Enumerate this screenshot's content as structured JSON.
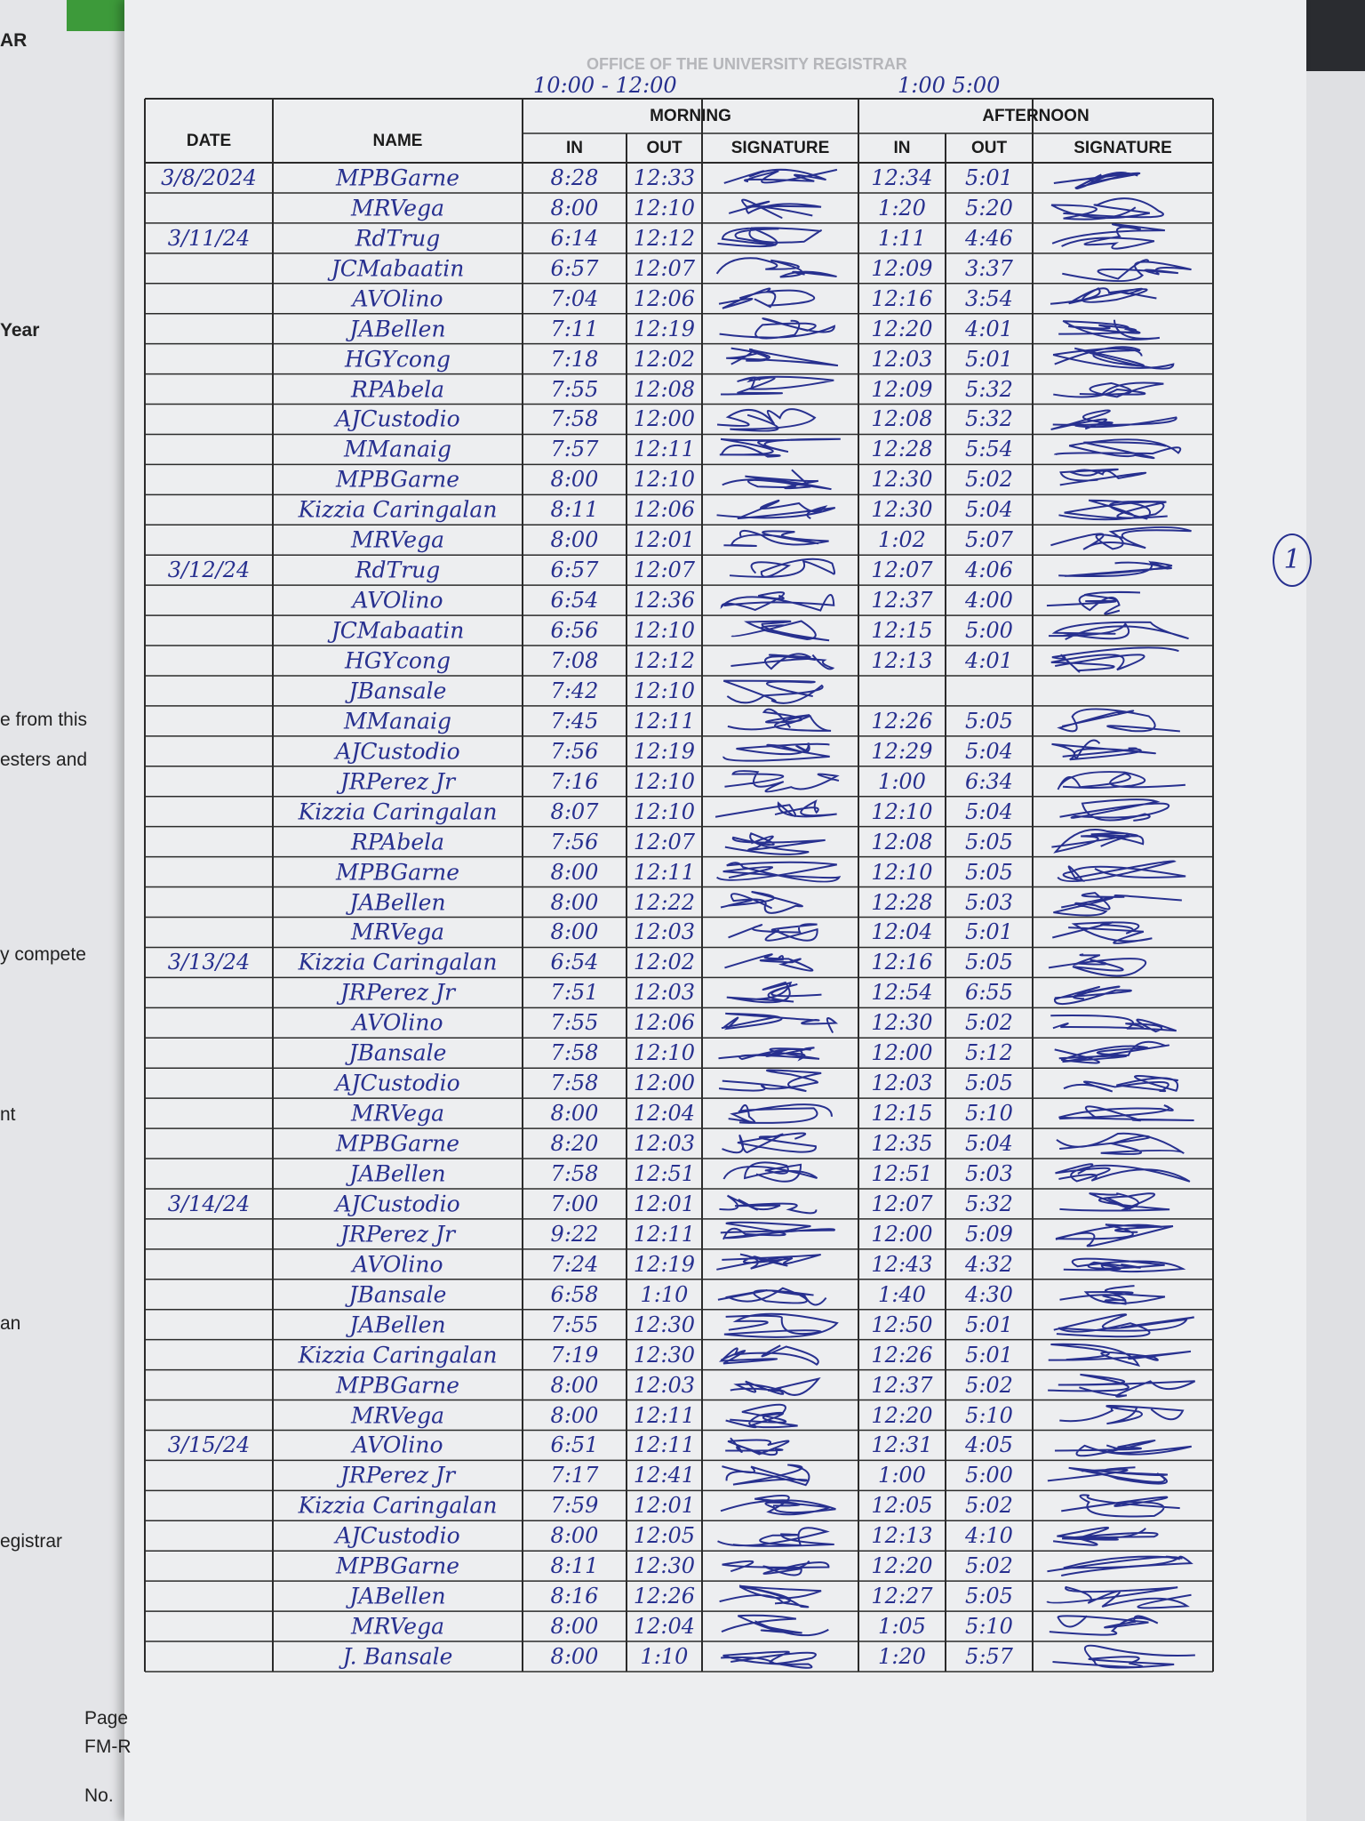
{
  "header": {
    "office": "OFFICE OF THE UNIVERSITY REGISTRAR",
    "morning_hours": "10:00 - 12:00",
    "afternoon_hours": "1:00 5:00"
  },
  "table": {
    "groups": [
      "MORNING",
      "AFTERNOON"
    ],
    "columns": [
      "DATE",
      "NAME",
      "IN",
      "OUT",
      "SIGNATURE",
      "IN",
      "OUT",
      "SIGNATURE"
    ],
    "rows": [
      {
        "date": "3/8/2024",
        "name": "MPBGarne",
        "am_in": "8:28",
        "am_out": "12:33",
        "pm_in": "12:34",
        "pm_out": "5:01"
      },
      {
        "name": "MRVega",
        "am_in": "8:00",
        "am_out": "12:10",
        "pm_in": "1:20",
        "pm_out": "5:20"
      },
      {
        "date": "3/11/24",
        "name": "RdTrug",
        "am_in": "6:14",
        "am_out": "12:12",
        "pm_in": "1:11",
        "pm_out": "4:46"
      },
      {
        "name": "JCMabaatin",
        "am_in": "6:57",
        "am_out": "12:07",
        "pm_in": "12:09",
        "pm_out": "3:37"
      },
      {
        "name": "AVOlino",
        "am_in": "7:04",
        "am_out": "12:06",
        "pm_in": "12:16",
        "pm_out": "3:54"
      },
      {
        "name": "JABellen",
        "am_in": "7:11",
        "am_out": "12:19",
        "pm_in": "12:20",
        "pm_out": "4:01"
      },
      {
        "name": "HGYcong",
        "am_in": "7:18",
        "am_out": "12:02",
        "pm_in": "12:03",
        "pm_out": "5:01"
      },
      {
        "name": "RPAbela",
        "am_in": "7:55",
        "am_out": "12:08",
        "pm_in": "12:09",
        "pm_out": "5:32"
      },
      {
        "name": "AJCustodio",
        "am_in": "7:58",
        "am_out": "12:00",
        "pm_in": "12:08",
        "pm_out": "5:32"
      },
      {
        "name": "MManaig",
        "am_in": "7:57",
        "am_out": "12:11",
        "pm_in": "12:28",
        "pm_out": "5:54"
      },
      {
        "name": "MPBGarne",
        "am_in": "8:00",
        "am_out": "12:10",
        "pm_in": "12:30",
        "pm_out": "5:02"
      },
      {
        "name": "Kizzia Caringalan",
        "am_in": "8:11",
        "am_out": "12:06",
        "pm_in": "12:30",
        "pm_out": "5:04"
      },
      {
        "name": "MRVega",
        "am_in": "8:00",
        "am_out": "12:01",
        "pm_in": "1:02",
        "pm_out": "5:07"
      },
      {
        "date": "3/12/24",
        "name": "RdTrug",
        "am_in": "6:57",
        "am_out": "12:07",
        "pm_in": "12:07",
        "pm_out": "4:06"
      },
      {
        "name": "AVOlino",
        "am_in": "6:54",
        "am_out": "12:36",
        "pm_in": "12:37",
        "pm_out": "4:00"
      },
      {
        "name": "JCMabaatin",
        "am_in": "6:56",
        "am_out": "12:10",
        "pm_in": "12:15",
        "pm_out": "5:00"
      },
      {
        "name": "HGYcong",
        "am_in": "7:08",
        "am_out": "12:12",
        "pm_in": "12:13",
        "pm_out": "4:01"
      },
      {
        "name": "JBansale",
        "am_in": "7:42",
        "am_out": "12:10"
      },
      {
        "name": "MManaig",
        "am_in": "7:45",
        "am_out": "12:11",
        "pm_in": "12:26",
        "pm_out": "5:05"
      },
      {
        "name": "AJCustodio",
        "am_in": "7:56",
        "am_out": "12:19",
        "pm_in": "12:29",
        "pm_out": "5:04"
      },
      {
        "name": "JRPerez Jr",
        "am_in": "7:16",
        "am_out": "12:10",
        "pm_in": "1:00",
        "pm_out": "6:34"
      },
      {
        "name": "Kizzia Caringalan",
        "am_in": "8:07",
        "am_out": "12:10",
        "pm_in": "12:10",
        "pm_out": "5:04"
      },
      {
        "name": "RPAbela",
        "am_in": "7:56",
        "am_out": "12:07",
        "pm_in": "12:08",
        "pm_out": "5:05"
      },
      {
        "name": "MPBGarne",
        "am_in": "8:00",
        "am_out": "12:11",
        "pm_in": "12:10",
        "pm_out": "5:05"
      },
      {
        "name": "JABellen",
        "am_in": "8:00",
        "am_out": "12:22",
        "pm_in": "12:28",
        "pm_out": "5:03"
      },
      {
        "name": "MRVega",
        "am_in": "8:00",
        "am_out": "12:03",
        "pm_in": "12:04",
        "pm_out": "5:01"
      },
      {
        "date": "3/13/24",
        "name": "Kizzia Caringalan",
        "am_in": "6:54",
        "am_out": "12:02",
        "pm_in": "12:16",
        "pm_out": "5:05"
      },
      {
        "name": "JRPerez Jr",
        "am_in": "7:51",
        "am_out": "12:03",
        "pm_in": "12:54",
        "pm_out": "6:55"
      },
      {
        "name": "AVOlino",
        "am_in": "7:55",
        "am_out": "12:06",
        "pm_in": "12:30",
        "pm_out": "5:02"
      },
      {
        "name": "JBansale",
        "am_in": "7:58",
        "am_out": "12:10",
        "pm_in": "12:00",
        "pm_out": "5:12"
      },
      {
        "name": "AJCustodio",
        "am_in": "7:58",
        "am_out": "12:00",
        "pm_in": "12:03",
        "pm_out": "5:05"
      },
      {
        "name": "MRVega",
        "am_in": "8:00",
        "am_out": "12:04",
        "pm_in": "12:15",
        "pm_out": "5:10"
      },
      {
        "name": "MPBGarne",
        "am_in": "8:20",
        "am_out": "12:03",
        "pm_in": "12:35",
        "pm_out": "5:04"
      },
      {
        "name": "JABellen",
        "am_in": "7:58",
        "am_out": "12:51",
        "pm_in": "12:51",
        "pm_out": "5:03"
      },
      {
        "date": "3/14/24",
        "name": "AJCustodio",
        "am_in": "7:00",
        "am_out": "12:01",
        "pm_in": "12:07",
        "pm_out": "5:32"
      },
      {
        "name": "JRPerez Jr",
        "am_in": "9:22",
        "am_out": "12:11",
        "pm_in": "12:00",
        "pm_out": "5:09"
      },
      {
        "name": "AVOlino",
        "am_in": "7:24",
        "am_out": "12:19",
        "pm_in": "12:43",
        "pm_out": "4:32"
      },
      {
        "name": "JBansale",
        "am_in": "6:58",
        "am_out": "1:10",
        "pm_in": "1:40",
        "pm_out": "4:30"
      },
      {
        "name": "JABellen",
        "am_in": "7:55",
        "am_out": "12:30",
        "pm_in": "12:50",
        "pm_out": "5:01"
      },
      {
        "name": "Kizzia Caringalan",
        "am_in": "7:19",
        "am_out": "12:30",
        "pm_in": "12:26",
        "pm_out": "5:01"
      },
      {
        "name": "MPBGarne",
        "am_in": "8:00",
        "am_out": "12:03",
        "pm_in": "12:37",
        "pm_out": "5:02"
      },
      {
        "name": "MRVega",
        "am_in": "8:00",
        "am_out": "12:11",
        "pm_in": "12:20",
        "pm_out": "5:10"
      },
      {
        "date": "3/15/24",
        "name": "AVOlino",
        "am_in": "6:51",
        "am_out": "12:11",
        "pm_in": "12:31",
        "pm_out": "4:05"
      },
      {
        "name": "JRPerez Jr",
        "am_in": "7:17",
        "am_out": "12:41",
        "pm_in": "1:00",
        "pm_out": "5:00"
      },
      {
        "name": "Kizzia Caringalan",
        "am_in": "7:59",
        "am_out": "12:01",
        "pm_in": "12:05",
        "pm_out": "5:02"
      },
      {
        "name": "AJCustodio",
        "am_in": "8:00",
        "am_out": "12:05",
        "pm_in": "12:13",
        "pm_out": "4:10"
      },
      {
        "name": "MPBGarne",
        "am_in": "8:11",
        "am_out": "12:30",
        "pm_in": "12:20",
        "pm_out": "5:02"
      },
      {
        "name": "JABellen",
        "am_in": "8:16",
        "am_out": "12:26",
        "pm_in": "12:27",
        "pm_out": "5:05"
      },
      {
        "name": "MRVega",
        "am_in": "8:00",
        "am_out": "12:04",
        "pm_in": "1:05",
        "pm_out": "5:10"
      },
      {
        "name": "J. Bansale",
        "am_in": "8:00",
        "am_out": "1:10",
        "pm_in": "1:20",
        "pm_out": "5:57"
      }
    ]
  },
  "margin_note": "1",
  "left_page": [
    "AR",
    "Year",
    "e from this",
    "esters and",
    "y compete",
    "nt",
    "an",
    "egistrar",
    "Page",
    "FM-R",
    "No."
  ]
}
